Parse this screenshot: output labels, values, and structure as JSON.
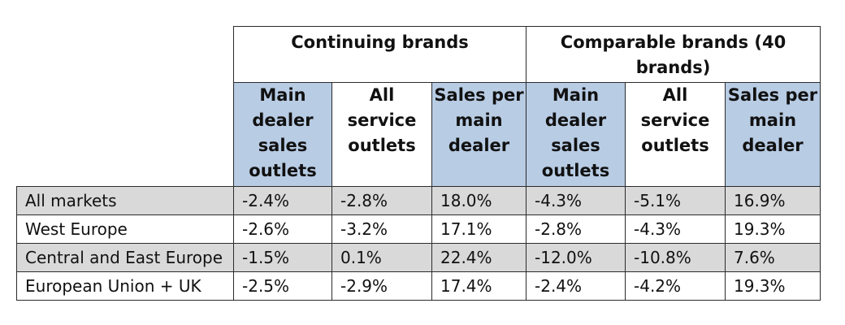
{
  "table": {
    "group_headers": [
      "Continuing brands",
      "Comparable brands (40 brands)"
    ],
    "column_headers": [
      "Main dealer sales outlets",
      "All service outlets",
      "Sales per main dealer",
      "Main dealer sales outlets",
      "All service outlets",
      "Sales per main dealer"
    ],
    "rows": [
      {
        "label": "All markets",
        "values": [
          "-2.4%",
          "-2.8%",
          "18.0%",
          "-4.3%",
          "-5.1%",
          "16.9%"
        ]
      },
      {
        "label": "West Europe",
        "values": [
          "-2.6%",
          "-3.2%",
          "17.1%",
          "-2.8%",
          "-4.3%",
          "19.3%"
        ]
      },
      {
        "label": "Central and East Europe",
        "values": [
          "-1.5%",
          "0.1%",
          "22.4%",
          "-12.0%",
          "-10.8%",
          "7.6%"
        ]
      },
      {
        "label": "European Union + UK",
        "values": [
          "-2.5%",
          "-2.9%",
          "17.4%",
          "-2.4%",
          "-4.2%",
          "19.3%"
        ]
      }
    ]
  }
}
